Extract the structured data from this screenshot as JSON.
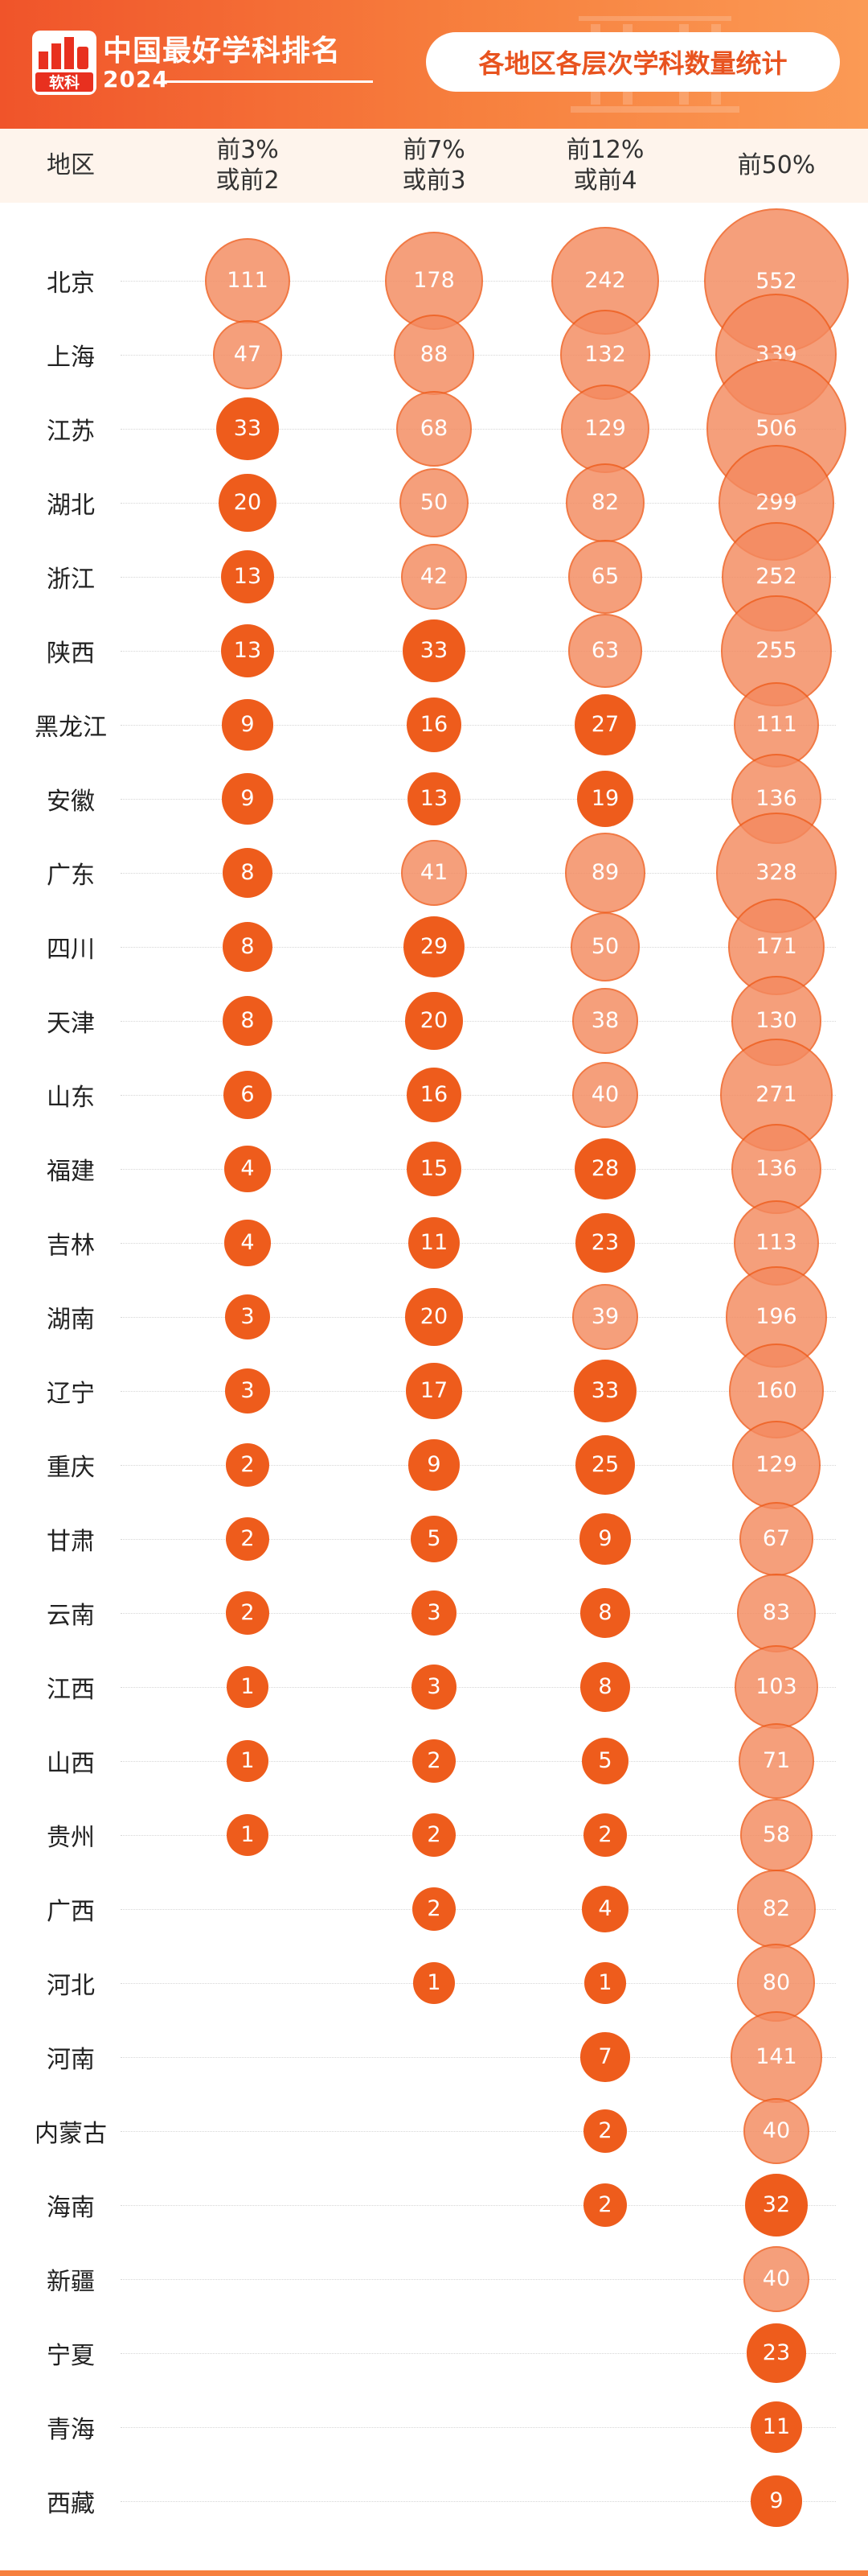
{
  "header": {
    "brand_title": "中国最好学科排名",
    "brand_year": "2024",
    "logo_text": "软科",
    "pill_title": "各地区各层次学科数量统计"
  },
  "colors": {
    "header_start": "#f0542a",
    "header_end": "#fb9a55",
    "bubble_dark": "#ee5c1c",
    "bubble_light": "#f48a5f",
    "accent_text": "#e8531f",
    "header_row_bg": "#fef4ec"
  },
  "chart_data": {
    "type": "table",
    "columns": [
      "地区",
      "前3%\n或前2",
      "前7%\n或前3",
      "前12%\n或前4",
      "前50%"
    ],
    "rows": [
      {
        "region": "北京",
        "values": [
          111,
          178,
          242,
          552
        ]
      },
      {
        "region": "上海",
        "values": [
          47,
          88,
          132,
          339
        ]
      },
      {
        "region": "江苏",
        "values": [
          33,
          68,
          129,
          506
        ]
      },
      {
        "region": "湖北",
        "values": [
          20,
          50,
          82,
          299
        ]
      },
      {
        "region": "浙江",
        "values": [
          13,
          42,
          65,
          252
        ]
      },
      {
        "region": "陕西",
        "values": [
          13,
          33,
          63,
          255
        ]
      },
      {
        "region": "黑龙江",
        "values": [
          9,
          16,
          27,
          111
        ]
      },
      {
        "region": "安徽",
        "values": [
          9,
          13,
          19,
          136
        ]
      },
      {
        "region": "广东",
        "values": [
          8,
          41,
          89,
          328
        ]
      },
      {
        "region": "四川",
        "values": [
          8,
          29,
          50,
          171
        ]
      },
      {
        "region": "天津",
        "values": [
          8,
          20,
          38,
          130
        ]
      },
      {
        "region": "山东",
        "values": [
          6,
          16,
          40,
          271
        ]
      },
      {
        "region": "福建",
        "values": [
          4,
          15,
          28,
          136
        ]
      },
      {
        "region": "吉林",
        "values": [
          4,
          11,
          23,
          113
        ]
      },
      {
        "region": "湖南",
        "values": [
          3,
          20,
          39,
          196
        ]
      },
      {
        "region": "辽宁",
        "values": [
          3,
          17,
          33,
          160
        ]
      },
      {
        "region": "重庆",
        "values": [
          2,
          9,
          25,
          129
        ]
      },
      {
        "region": "甘肃",
        "values": [
          2,
          5,
          9,
          67
        ]
      },
      {
        "region": "云南",
        "values": [
          2,
          3,
          8,
          83
        ]
      },
      {
        "region": "江西",
        "values": [
          1,
          3,
          8,
          103
        ]
      },
      {
        "region": "山西",
        "values": [
          1,
          2,
          5,
          71
        ]
      },
      {
        "region": "贵州",
        "values": [
          1,
          2,
          2,
          58
        ]
      },
      {
        "region": "广西",
        "values": [
          null,
          2,
          4,
          82
        ]
      },
      {
        "region": "河北",
        "values": [
          null,
          1,
          1,
          80
        ]
      },
      {
        "region": "河南",
        "values": [
          null,
          null,
          7,
          141
        ]
      },
      {
        "region": "内蒙古",
        "values": [
          null,
          null,
          2,
          40
        ]
      },
      {
        "region": "海南",
        "values": [
          null,
          null,
          2,
          32
        ]
      },
      {
        "region": "新疆",
        "values": [
          null,
          null,
          null,
          40
        ]
      },
      {
        "region": "宁夏",
        "values": [
          null,
          null,
          null,
          23
        ]
      },
      {
        "region": "青海",
        "values": [
          null,
          null,
          null,
          11
        ]
      },
      {
        "region": "西藏",
        "values": [
          null,
          null,
          null,
          9
        ]
      }
    ]
  }
}
